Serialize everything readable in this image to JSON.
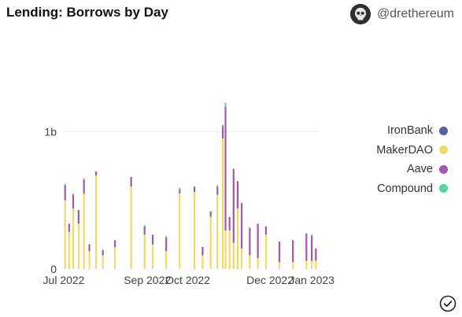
{
  "header": {
    "title": "Lending: Borrows by Day",
    "author": "@drethereum"
  },
  "icons": {
    "avatar": "skull-avatar-icon",
    "check": "check-circle-icon"
  },
  "chart_data": {
    "type": "bar",
    "stacked": true,
    "title": "Lending: Borrows by Day",
    "xlabel": "",
    "ylabel": "",
    "x_tick_labels": [
      "Jul 2022",
      "Sep 2022",
      "Oct 2022",
      "Dec 2022",
      "Jan 2023"
    ],
    "x_tick_dates": [
      "2022-07-01",
      "2022-09-01",
      "2022-10-01",
      "2022-12-01",
      "2023-01-01"
    ],
    "y_tick_labels": [
      "0",
      "1b"
    ],
    "y_tick_values": [
      0,
      1000000000
    ],
    "ylim": [
      0,
      1700000000
    ],
    "x_range": [
      "2022-07-01",
      "2023-01-05"
    ],
    "grid": true,
    "legend_position": "right",
    "series": [
      {
        "name": "IronBank",
        "color": "#5b5e9d"
      },
      {
        "name": "MakerDAO",
        "color": "#f2d966"
      },
      {
        "name": "Aave",
        "color": "#a25aa8"
      },
      {
        "name": "Compound",
        "color": "#5ad3a0"
      }
    ],
    "stack_order_bottom_to_top": [
      "IronBank",
      "MakerDAO",
      "Aave",
      "Compound"
    ],
    "points": [
      {
        "date": "2022-07-02",
        "MakerDAO": 500000000,
        "Aave": 110000000,
        "Compound": 10000000
      },
      {
        "date": "2022-07-05",
        "MakerDAO": 270000000,
        "Aave": 60000000
      },
      {
        "date": "2022-07-08",
        "MakerDAO": 440000000,
        "Aave": 100000000,
        "Compound": 10000000
      },
      {
        "date": "2022-07-12",
        "MakerDAO": 330000000,
        "Aave": 100000000
      },
      {
        "date": "2022-07-16",
        "MakerDAO": 550000000,
        "Aave": 100000000,
        "Compound": 10000000
      },
      {
        "date": "2022-07-20",
        "MakerDAO": 130000000,
        "Aave": 50000000
      },
      {
        "date": "2022-07-25",
        "MakerDAO": 680000000,
        "Aave": 30000000
      },
      {
        "date": "2022-07-30",
        "MakerDAO": 100000000,
        "Aave": 40000000
      },
      {
        "date": "2022-08-08",
        "MakerDAO": 160000000,
        "Aave": 50000000
      },
      {
        "date": "2022-08-20",
        "MakerDAO": 600000000,
        "Aave": 70000000
      },
      {
        "date": "2022-08-30",
        "MakerDAO": 250000000,
        "Aave": 60000000,
        "Compound": 10000000
      },
      {
        "date": "2022-09-05",
        "MakerDAO": 180000000,
        "Aave": 70000000
      },
      {
        "date": "2022-09-15",
        "MakerDAO": 130000000,
        "Aave": 100000000,
        "Compound": 10000000
      },
      {
        "date": "2022-09-25",
        "MakerDAO": 550000000,
        "Aave": 30000000,
        "Compound": 10000000
      },
      {
        "date": "2022-10-06",
        "MakerDAO": 560000000,
        "Aave": 40000000
      },
      {
        "date": "2022-10-12",
        "MakerDAO": 100000000,
        "Aave": 60000000
      },
      {
        "date": "2022-10-18",
        "MakerDAO": 380000000,
        "Aave": 40000000
      },
      {
        "date": "2022-10-23",
        "MakerDAO": 540000000,
        "Aave": 60000000,
        "Compound": 10000000
      },
      {
        "date": "2022-10-27",
        "MakerDAO": 950000000,
        "Aave": 90000000,
        "Compound": 10000000
      },
      {
        "date": "2022-10-29",
        "MakerDAO": 280000000,
        "Aave": 900000000,
        "Compound": 30000000
      },
      {
        "date": "2022-11-01",
        "MakerDAO": 280000000,
        "Aave": 100000000
      },
      {
        "date": "2022-11-04",
        "MakerDAO": 190000000,
        "Aave": 540000000
      },
      {
        "date": "2022-11-07",
        "MakerDAO": 440000000,
        "Aave": 200000000
      },
      {
        "date": "2022-11-10",
        "MakerDAO": 150000000,
        "Aave": 330000000
      },
      {
        "date": "2022-11-16",
        "MakerDAO": 100000000,
        "Aave": 200000000
      },
      {
        "date": "2022-11-22",
        "MakerDAO": 80000000,
        "Aave": 250000000
      },
      {
        "date": "2022-11-28",
        "MakerDAO": 250000000,
        "Aave": 60000000
      },
      {
        "date": "2022-12-08",
        "MakerDAO": 50000000,
        "Aave": 150000000
      },
      {
        "date": "2022-12-18",
        "MakerDAO": 50000000,
        "Aave": 160000000
      },
      {
        "date": "2022-12-28",
        "MakerDAO": 60000000,
        "Aave": 200000000
      },
      {
        "date": "2023-01-01",
        "MakerDAO": 60000000,
        "Aave": 180000000,
        "Compound": 10000000
      },
      {
        "date": "2023-01-04",
        "MakerDAO": 60000000,
        "Aave": 90000000
      }
    ]
  }
}
